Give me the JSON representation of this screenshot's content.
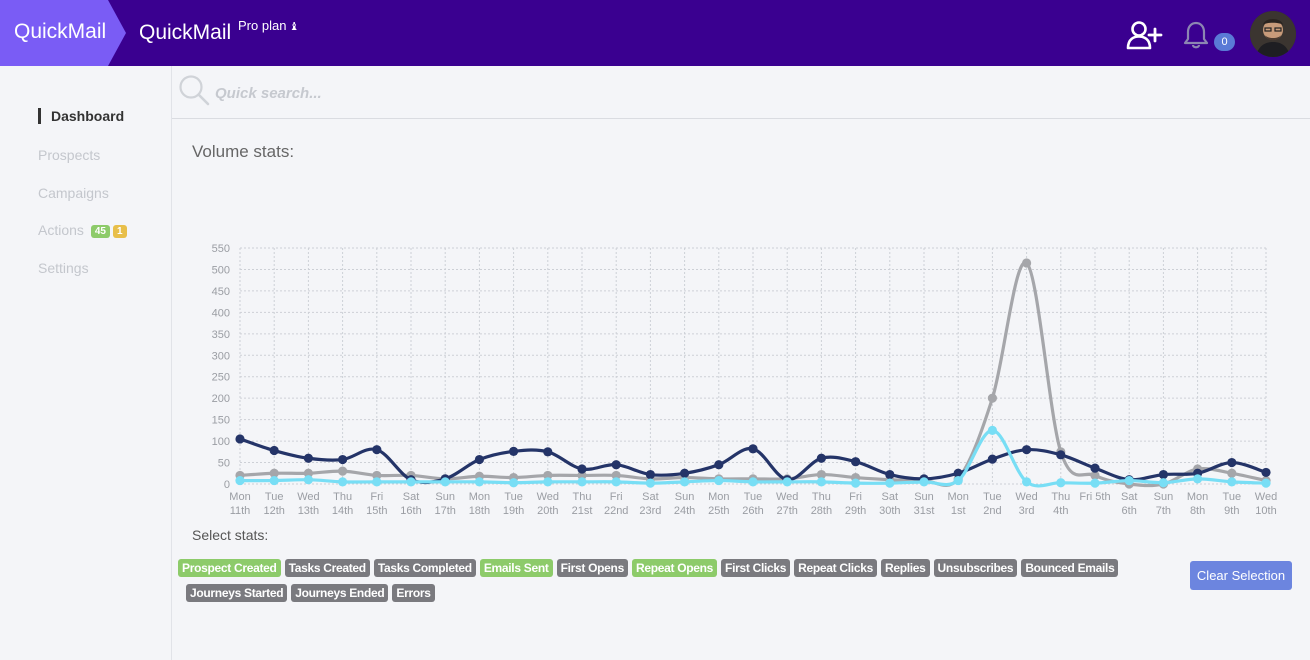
{
  "header": {
    "brand": "QuickMail",
    "app_title": "QuickMail",
    "plan": "Pro plan",
    "notification_count": "0",
    "colors": {
      "bar": "#3a0090",
      "brand_tab": "#7a5cf5",
      "badge": "#5a7ad6"
    },
    "icons": [
      "add-user-icon",
      "bell-icon",
      "user-avatar"
    ]
  },
  "sidebar": {
    "items": [
      {
        "label": "Dashboard",
        "active": true
      },
      {
        "label": "Prospects"
      },
      {
        "label": "Campaigns"
      },
      {
        "label": "Actions",
        "badges": [
          {
            "text": "45",
            "color": "#8dcb6a"
          },
          {
            "text": "1",
            "color": "#e8bf4a"
          }
        ]
      },
      {
        "label": "Settings"
      }
    ]
  },
  "search": {
    "placeholder": "Quick search..."
  },
  "main": {
    "title": "Volume stats:",
    "select_label": "Select stats:",
    "clear_label": "Clear Selection"
  },
  "stat_tags": [
    {
      "label": "Prospect Created",
      "selected": true
    },
    {
      "label": "Tasks Created",
      "selected": false
    },
    {
      "label": "Tasks Completed",
      "selected": false
    },
    {
      "label": "Emails Sent",
      "selected": true
    },
    {
      "label": "First Opens",
      "selected": false
    },
    {
      "label": "Repeat Opens",
      "selected": true
    },
    {
      "label": "First Clicks",
      "selected": false
    },
    {
      "label": "Repeat Clicks",
      "selected": false
    },
    {
      "label": "Replies",
      "selected": false
    },
    {
      "label": "Unsubscribes",
      "selected": false
    },
    {
      "label": "Bounced Emails",
      "selected": false
    },
    {
      "label": "Journeys Started",
      "selected": false
    },
    {
      "label": "Journeys Ended",
      "selected": false
    },
    {
      "label": "Errors",
      "selected": false
    }
  ],
  "chart_data": {
    "type": "line",
    "ylim": [
      0,
      550
    ],
    "yticks": [
      0,
      50,
      100,
      150,
      200,
      250,
      300,
      350,
      400,
      450,
      500,
      550
    ],
    "grid": true,
    "categories": [
      [
        "Mon",
        "11th"
      ],
      [
        "Tue",
        "12th"
      ],
      [
        "Wed",
        "13th"
      ],
      [
        "Thu",
        "14th"
      ],
      [
        "Fri",
        "15th"
      ],
      [
        "Sat",
        "16th"
      ],
      [
        "Sun",
        "17th"
      ],
      [
        "Mon",
        "18th"
      ],
      [
        "Tue",
        "19th"
      ],
      [
        "Wed",
        "20th"
      ],
      [
        "Thu",
        "21st"
      ],
      [
        "Fri",
        "22nd"
      ],
      [
        "Sat",
        "23rd"
      ],
      [
        "Sun",
        "24th"
      ],
      [
        "Mon",
        "25th"
      ],
      [
        "Tue",
        "26th"
      ],
      [
        "Wed",
        "27th"
      ],
      [
        "Thu",
        "28th"
      ],
      [
        "Fri",
        "29th"
      ],
      [
        "Sat",
        "30th"
      ],
      [
        "Sun",
        "31st"
      ],
      [
        "Mon",
        "1st"
      ],
      [
        "Tue",
        "2nd"
      ],
      [
        "Wed",
        "3rd"
      ],
      [
        "Thu",
        "4th"
      ],
      [
        "Fri 5th",
        ""
      ],
      [
        "Sat",
        "6th"
      ],
      [
        "Sun",
        "7th"
      ],
      [
        "Mon",
        "8th"
      ],
      [
        "Tue",
        "9th"
      ],
      [
        "Wed",
        "10th"
      ]
    ],
    "series": [
      {
        "color": "#a5a6aa",
        "values": [
          20,
          25,
          25,
          30,
          20,
          20,
          12,
          18,
          15,
          20,
          20,
          20,
          12,
          15,
          12,
          12,
          12,
          22,
          15,
          10,
          8,
          12,
          200,
          515,
          75,
          20,
          0,
          0,
          35,
          25,
          8
        ]
      },
      {
        "color": "#243468",
        "values": [
          105,
          78,
          60,
          57,
          80,
          10,
          12,
          57,
          76,
          75,
          35,
          45,
          22,
          25,
          45,
          82,
          10,
          60,
          52,
          22,
          12,
          25,
          58,
          80,
          68,
          37,
          10,
          22,
          25,
          50,
          27
        ]
      },
      {
        "color": "#78def5",
        "values": [
          8,
          8,
          10,
          5,
          5,
          5,
          5,
          5,
          3,
          5,
          5,
          5,
          2,
          5,
          8,
          5,
          5,
          5,
          2,
          2,
          5,
          8,
          125,
          5,
          3,
          2,
          8,
          3,
          12,
          5,
          2
        ]
      }
    ]
  }
}
